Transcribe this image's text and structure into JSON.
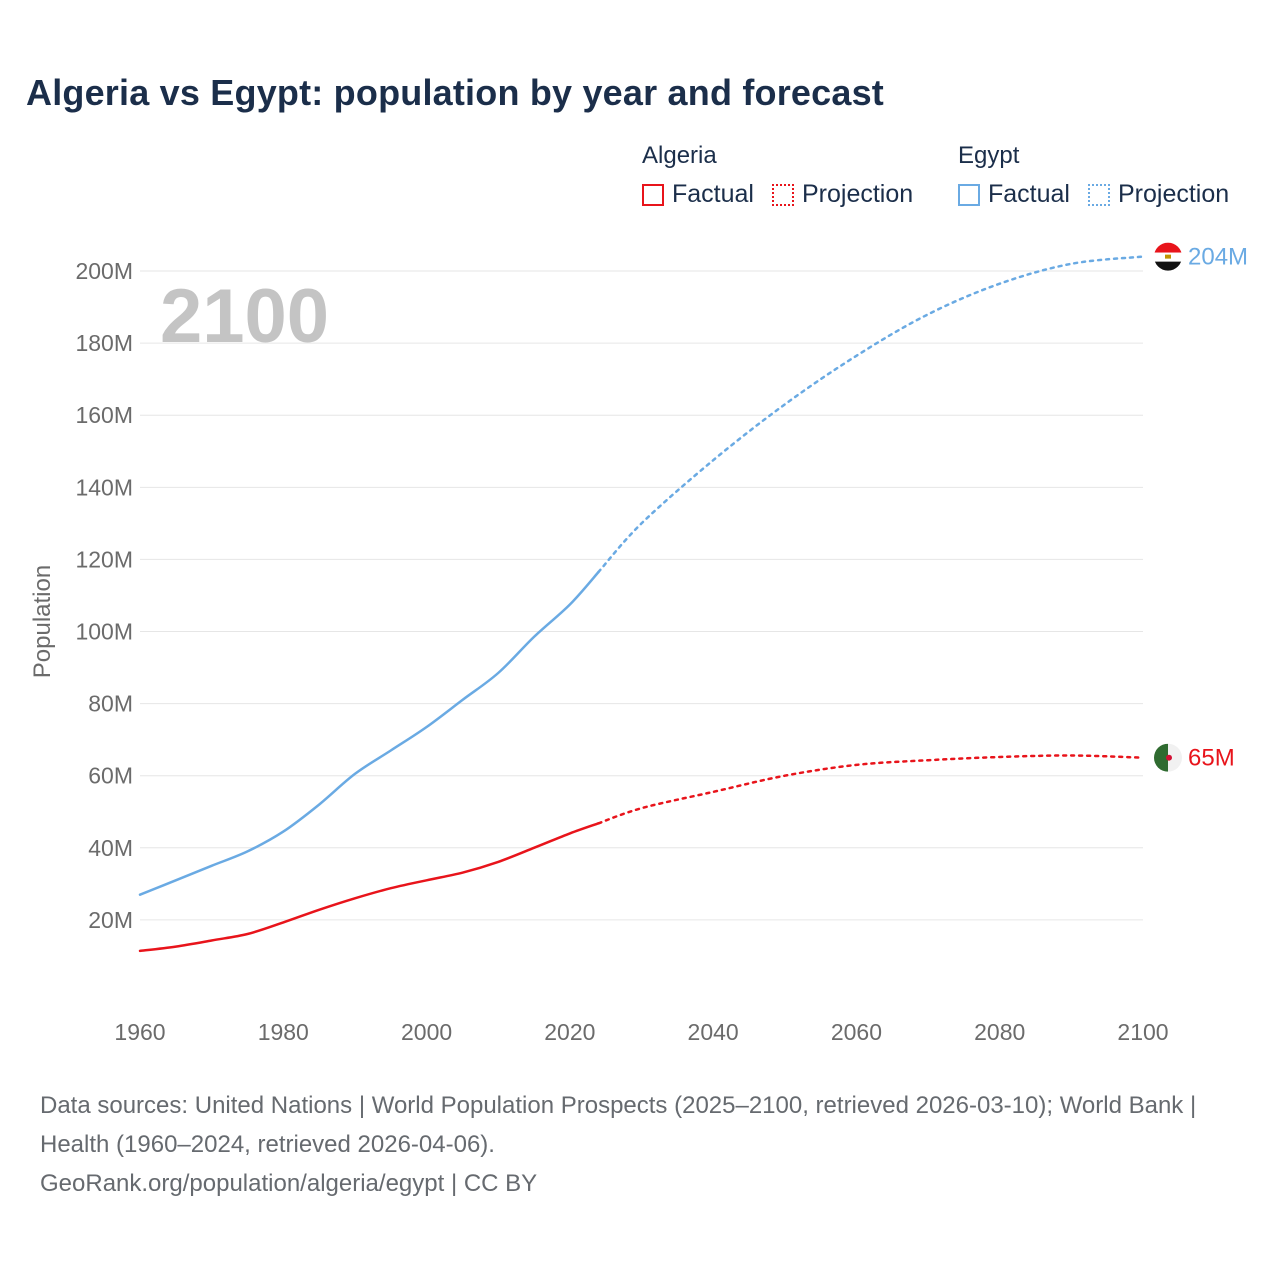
{
  "title": "Algeria vs Egypt: population by year and forecast",
  "legend": [
    {
      "group": "Algeria",
      "color": "#e8141b",
      "items": [
        {
          "label": "Factual",
          "style": "solid"
        },
        {
          "label": "Projection",
          "style": "dotted"
        }
      ]
    },
    {
      "group": "Egypt",
      "color": "#6aaae3",
      "items": [
        {
          "label": "Factual",
          "style": "solid"
        },
        {
          "label": "Projection",
          "style": "dotted"
        }
      ]
    }
  ],
  "chart_data": {
    "type": "line",
    "year_label": "2100",
    "ylabel": "Population",
    "xlim": [
      1960,
      2100
    ],
    "ylim": [
      0,
      210
    ],
    "x_ticks": [
      "1960",
      "1980",
      "2000",
      "2020",
      "2040",
      "2060",
      "2080",
      "2100"
    ],
    "y_ticks": [
      {
        "value": 20,
        "label": "20M"
      },
      {
        "value": 40,
        "label": "40M"
      },
      {
        "value": 60,
        "label": "60M"
      },
      {
        "value": 80,
        "label": "80M"
      },
      {
        "value": 100,
        "label": "100M"
      },
      {
        "value": 120,
        "label": "120M"
      },
      {
        "value": 140,
        "label": "140M"
      },
      {
        "value": 160,
        "label": "160M"
      },
      {
        "value": 180,
        "label": "180M"
      },
      {
        "value": 200,
        "label": "200M"
      }
    ],
    "factual_end_year": 2024,
    "series": [
      {
        "name": "Algeria",
        "color": "#e8141b",
        "end_label": "65M",
        "flag": "algeria-flag",
        "factual": {
          "x": [
            1960,
            1965,
            1970,
            1975,
            1980,
            1985,
            1990,
            1995,
            2000,
            2005,
            2010,
            2015,
            2020,
            2024
          ],
          "y": [
            11.4,
            12.6,
            14.3,
            16.1,
            19.3,
            22.8,
            26.0,
            28.8,
            31.0,
            33.1,
            36.1,
            40.0,
            44.0,
            46.8
          ]
        },
        "projection": {
          "x": [
            2024,
            2030,
            2040,
            2050,
            2060,
            2070,
            2080,
            2090,
            2100
          ],
          "y": [
            46.8,
            51.0,
            55.5,
            60.0,
            63.0,
            64.3,
            65.2,
            65.6,
            65.0
          ]
        }
      },
      {
        "name": "Egypt",
        "color": "#6aaae3",
        "end_label": "204M",
        "flag": "egypt-flag",
        "factual": {
          "x": [
            1960,
            1965,
            1970,
            1975,
            1980,
            1985,
            1990,
            1995,
            2000,
            2005,
            2010,
            2015,
            2020,
            2024
          ],
          "y": [
            27.0,
            31.0,
            35.0,
            39.0,
            44.5,
            52.0,
            60.5,
            67.0,
            73.5,
            81.0,
            88.5,
            98.5,
            107.5,
            116.5
          ]
        },
        "projection": {
          "x": [
            2024,
            2030,
            2040,
            2050,
            2060,
            2070,
            2080,
            2090,
            2100
          ],
          "y": [
            116.5,
            130.0,
            147.5,
            163.0,
            176.5,
            188.0,
            196.5,
            202.0,
            204.0
          ]
        }
      }
    ]
  },
  "footer": {
    "sources": "Data sources: United Nations | World Population Prospects (2025–2100, retrieved 2026-03-10); World Bank | Health (1960–2024, retrieved 2026-04-06).",
    "credit": "GeoRank.org/population/algeria/egypt | CC BY"
  }
}
